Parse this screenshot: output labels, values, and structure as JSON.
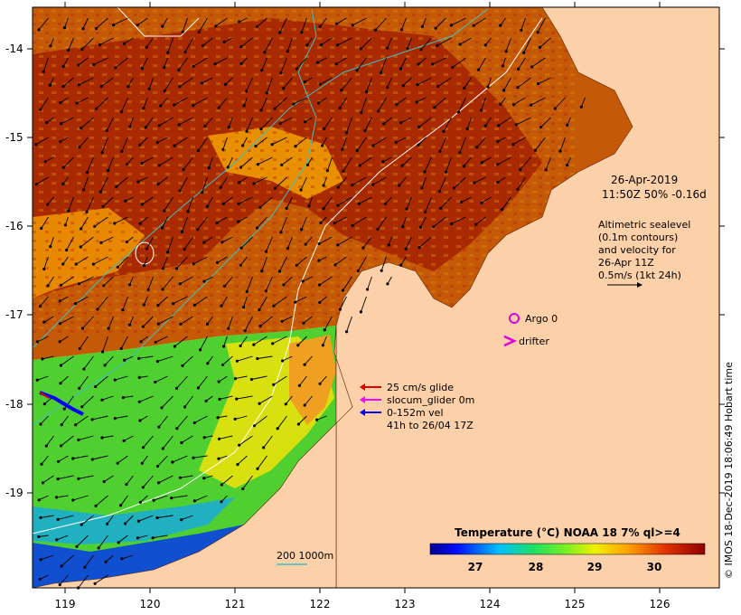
{
  "map": {
    "lat_ticks": [
      "-14",
      "-15",
      "-16",
      "-17",
      "-18",
      "-19"
    ],
    "lon_ticks": [
      "119",
      "120",
      "121",
      "122",
      "123",
      "124",
      "125",
      "126"
    ]
  },
  "info": {
    "date": "26-Apr-2019",
    "time_line": "11:50Z  50% -0.16d",
    "alti_1": "Altimetric sealevel",
    "alti_2": "(0.1m contours)",
    "alti_3": "and velocity for",
    "alti_4": "26-Apr 11Z",
    "alti_5": "0.5m/s (1kt 24h)"
  },
  "legend": {
    "argo": "Argo 0",
    "drifter": "drifter",
    "glider_1": "25 cm/s glide",
    "glider_2": "slocum_glider 0m",
    "glider_3": "0-152m vel",
    "glider_4": "41h to 26/04 17Z",
    "isobath": "200  1000m"
  },
  "colorbar": {
    "title": "Temperature (°C) NOAA 18 7% ql>=4",
    "ticks": [
      "27",
      "28",
      "29",
      "30"
    ]
  },
  "credit": "© IMOS 18-Dec-2019 18:06:49 Hobart time",
  "colors": {
    "land": "#fcd0a8",
    "argo": "#e000e0",
    "glider_red": "#e00000",
    "glider_magenta": "#ff00ff",
    "glider_blue": "#0000ff",
    "isobath": "#40c0c0",
    "contour": "#ffffff"
  }
}
